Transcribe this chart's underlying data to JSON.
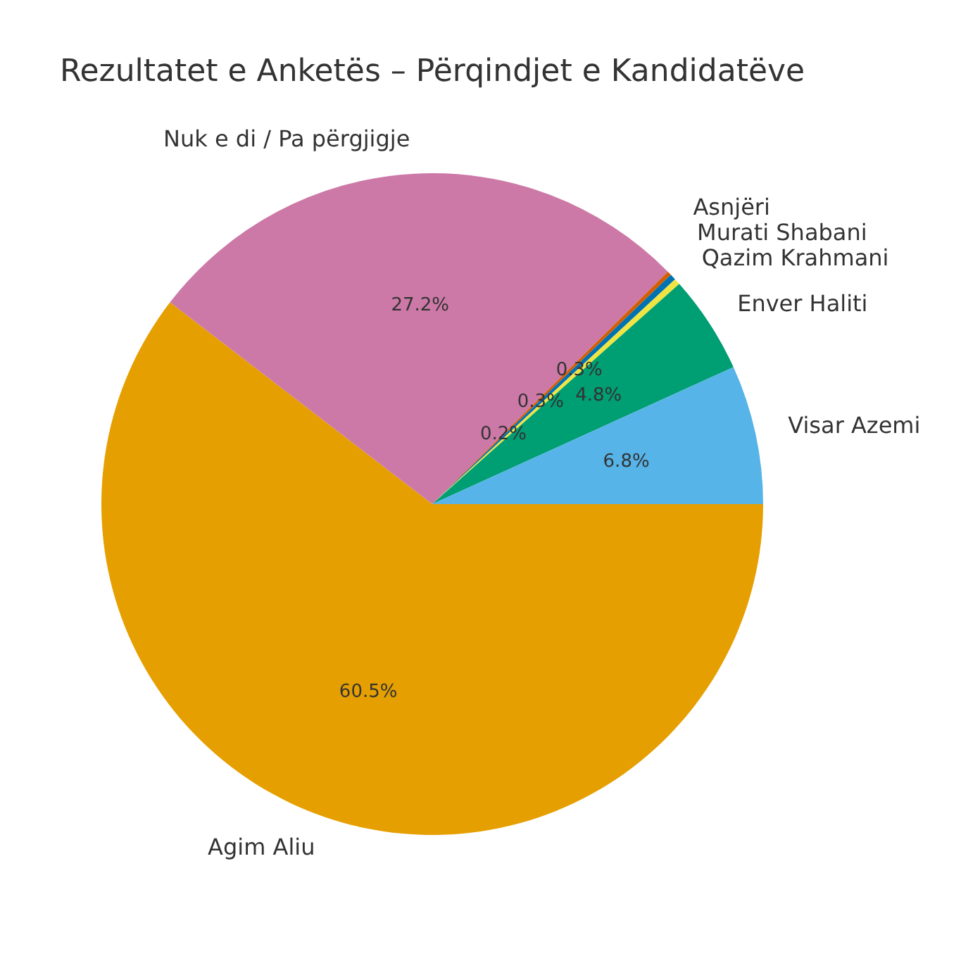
{
  "chart_data": {
    "type": "pie",
    "title": "Rezultatet e Anketës – Përqindjet e Kandidatëve",
    "categories": [
      "Visar Azemi",
      "Enver Haliti",
      "Qazim Krahmani",
      "Murati Shabani",
      "Asnjëri",
      "Nuk e di / Pa përgjigje",
      "Agim Aliu"
    ],
    "values": [
      6.8,
      4.8,
      0.3,
      0.3,
      0.2,
      27.2,
      60.5
    ],
    "value_labels": [
      "6.8%",
      "4.8%",
      "0.3%",
      "0.3%",
      "0.2%",
      "27.2%",
      "60.5%"
    ],
    "colors": [
      "#56b4e9",
      "#009e73",
      "#f0e442",
      "#0072b2",
      "#d55e00",
      "#cc79a7",
      "#e69f00"
    ],
    "legend": false
  }
}
